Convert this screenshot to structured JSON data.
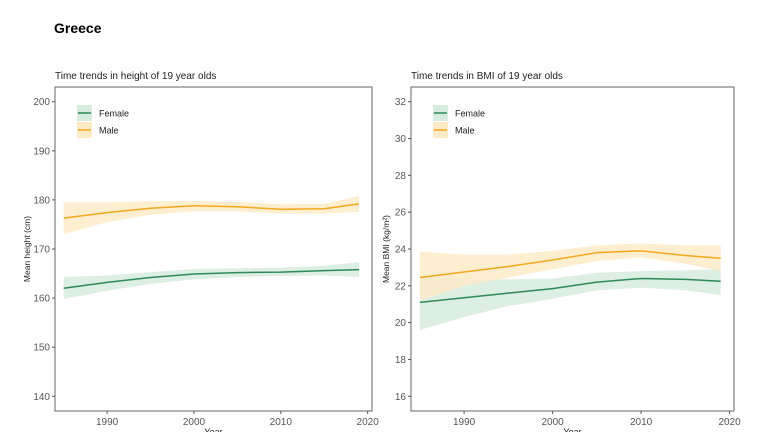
{
  "page_title": "Greece",
  "colors": {
    "Female": "#2e8b57",
    "Male": "#f4a81d",
    "Female_band": "#d7ebde",
    "Male_band": "#fdebc8"
  },
  "chart_data": [
    {
      "type": "line",
      "title": "Time trends in height of 19 year olds",
      "xlabel": "Year",
      "ylabel": "Mean height (cm)",
      "xlim": [
        1984,
        2020.5
      ],
      "ylim": [
        137,
        203
      ],
      "xticks": [
        1990,
        2000,
        2010,
        2020
      ],
      "yticks": [
        140,
        150,
        160,
        170,
        180,
        190,
        200
      ],
      "legend_position": "top-left",
      "grid": false,
      "x": [
        1985,
        1990,
        1995,
        2000,
        2005,
        2010,
        2015,
        2019
      ],
      "series": [
        {
          "name": "Female",
          "values": [
            162.0,
            163.2,
            164.2,
            164.9,
            165.2,
            165.3,
            165.6,
            165.8
          ],
          "lower": [
            159.8,
            161.5,
            162.9,
            163.8,
            164.3,
            164.5,
            164.6,
            164.3
          ],
          "upper": [
            164.3,
            164.6,
            165.3,
            165.9,
            166.1,
            166.2,
            166.6,
            167.3
          ]
        },
        {
          "name": "Male",
          "values": [
            176.3,
            177.4,
            178.3,
            178.8,
            178.6,
            178.1,
            178.2,
            179.2
          ],
          "lower": [
            173.0,
            175.5,
            177.0,
            177.7,
            177.7,
            177.2,
            177.2,
            177.6
          ],
          "upper": [
            179.5,
            179.5,
            179.7,
            179.8,
            179.6,
            179.1,
            179.2,
            180.8
          ]
        }
      ]
    },
    {
      "type": "line",
      "title": "Time trends in BMI of 19 year olds",
      "xlabel": "Year",
      "ylabel": "Mean BMI (kg/m²)",
      "xlim": [
        1984,
        2020.5
      ],
      "ylim": [
        15.2,
        32.8
      ],
      "xticks": [
        1990,
        2000,
        2010,
        2020
      ],
      "yticks": [
        16,
        18,
        20,
        22,
        24,
        26,
        28,
        30,
        32
      ],
      "legend_position": "top-left",
      "grid": false,
      "x": [
        1985,
        1990,
        1995,
        2000,
        2005,
        2010,
        2015,
        2019
      ],
      "series": [
        {
          "name": "Female",
          "values": [
            21.1,
            21.35,
            21.6,
            21.85,
            22.2,
            22.4,
            22.35,
            22.25
          ],
          "lower": [
            19.6,
            20.3,
            20.9,
            21.3,
            21.75,
            21.9,
            21.75,
            21.5
          ],
          "upper": [
            22.5,
            22.4,
            22.35,
            22.4,
            22.7,
            22.8,
            22.85,
            22.9
          ]
        },
        {
          "name": "Male",
          "values": [
            22.45,
            22.75,
            23.05,
            23.4,
            23.8,
            23.9,
            23.65,
            23.5
          ],
          "lower": [
            21.2,
            22.0,
            22.45,
            22.9,
            23.35,
            23.55,
            23.2,
            22.8
          ],
          "upper": [
            23.85,
            23.7,
            23.7,
            23.9,
            24.2,
            24.3,
            24.2,
            24.2
          ]
        }
      ]
    }
  ]
}
